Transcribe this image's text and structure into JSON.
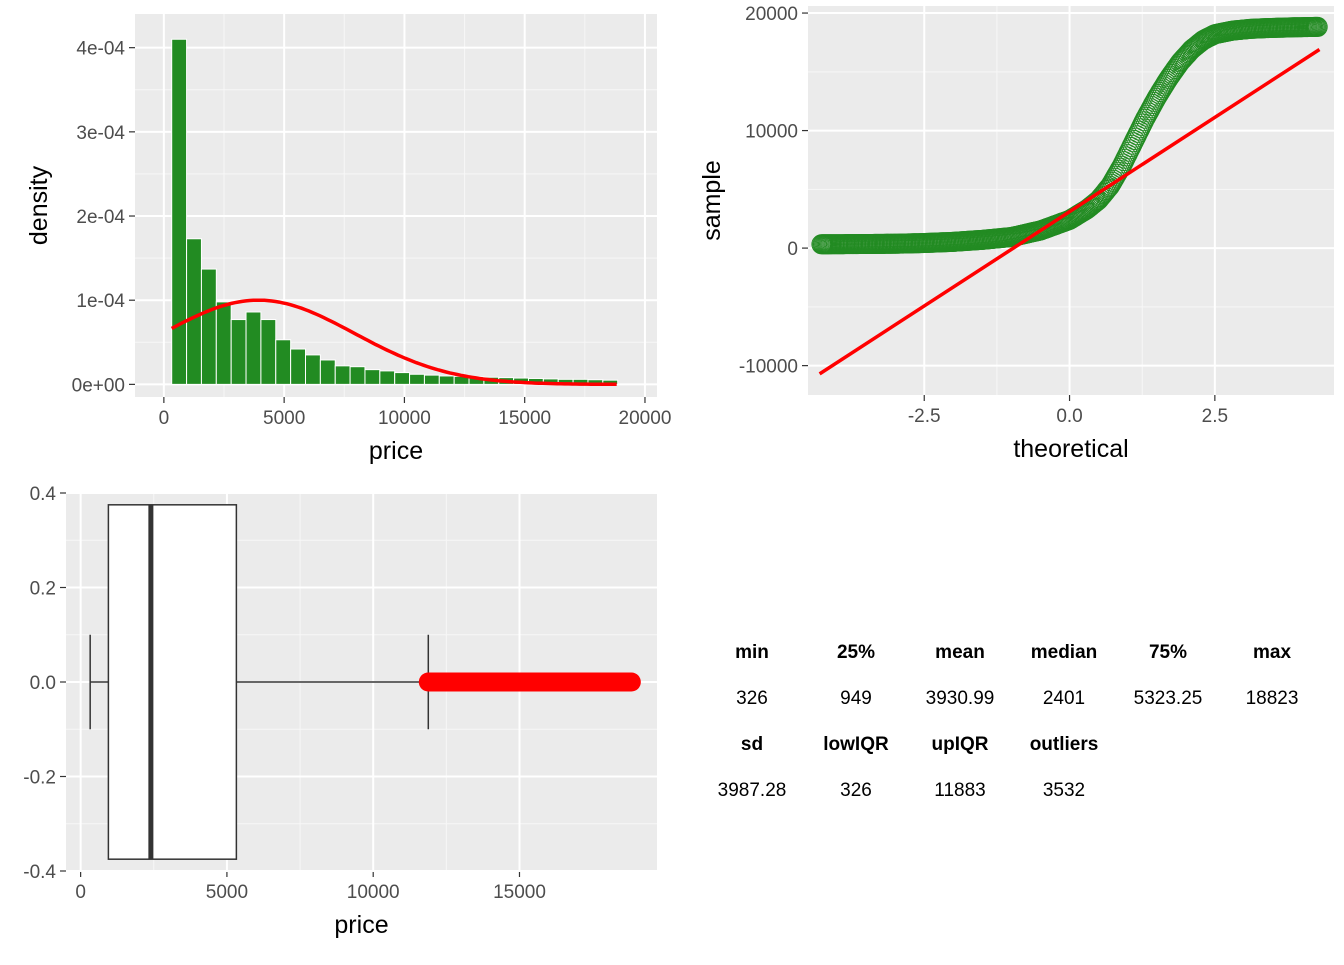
{
  "chart_data": [
    {
      "type": "bar",
      "subtype": "histogram-with-normal-density",
      "xlabel": "price",
      "ylabel": "density",
      "xlim": [
        -1200,
        20500
      ],
      "ylim": [
        -1.5e-05,
        0.00044
      ],
      "xticks": [
        0,
        5000,
        10000,
        15000,
        20000
      ],
      "xtick_labels": [
        "0",
        "5000",
        "10000",
        "15000",
        "20000"
      ],
      "yticks": [
        0,
        0.0001,
        0.0002,
        0.0003,
        0.0004
      ],
      "ytick_labels": [
        "0e+00",
        "1e-04",
        "2e-04",
        "3e-04",
        "4e-04"
      ],
      "bin_width": 618,
      "bin_start": 326,
      "values": [
        0.00041,
        0.000173,
        0.000137,
        9.8e-05,
        7.7e-05,
        8.6e-05,
        7.7e-05,
        5.3e-05,
        4.2e-05,
        3.5e-05,
        2.9e-05,
        2.2e-05,
        2.1e-05,
        1.75e-05,
        1.6e-05,
        1.4e-05,
        1.2e-05,
        1.1e-05,
        1e-05,
        9.5e-06,
        9e-06,
        8.5e-06,
        8e-06,
        7.5e-06,
        7e-06,
        6.5e-06,
        6e-06,
        6e-06,
        5.5e-06,
        5e-06
      ],
      "bar_color": "#228B22",
      "curve": {
        "distribution": "normal",
        "mean": 3930.99,
        "sd": 3987.28,
        "x_from": 326,
        "x_to": 18823,
        "color": "#FF0000"
      },
      "grid": true,
      "legend": "none"
    },
    {
      "type": "scatter",
      "subtype": "normal-qq-plot",
      "xlabel": "theoretical",
      "ylabel": "sample",
      "xlim": [
        -4.5,
        4.55
      ],
      "ylim": [
        -12500,
        20600
      ],
      "xticks": [
        -2.5,
        0,
        2.5
      ],
      "xtick_labels": [
        "-2.5",
        "0.0",
        "2.5"
      ],
      "yticks": [
        -10000,
        0,
        10000,
        20000
      ],
      "ytick_labels": [
        "-10000",
        "0",
        "10000",
        "20000"
      ],
      "points": [
        [
          -4.27,
          326
        ],
        [
          -4.12,
          327
        ],
        [
          -4.0,
          332
        ],
        [
          -3.9,
          335
        ],
        [
          -3.8,
          338
        ],
        [
          -3.7,
          342
        ],
        [
          -3.6,
          345
        ],
        [
          -3.5,
          348
        ],
        [
          -3.3,
          355
        ],
        [
          -3.0,
          370
        ],
        [
          -2.5,
          430
        ],
        [
          -2.0,
          530
        ],
        [
          -1.5,
          700
        ],
        [
          -1.0,
          940
        ],
        [
          -0.5,
          1500
        ],
        [
          0.0,
          2401
        ],
        [
          0.3,
          3300
        ],
        [
          0.5,
          4100
        ],
        [
          0.7,
          5300
        ],
        [
          0.9,
          7000
        ],
        [
          1.1,
          9000
        ],
        [
          1.3,
          11000
        ],
        [
          1.5,
          12800
        ],
        [
          1.7,
          14400
        ],
        [
          1.9,
          15800
        ],
        [
          2.1,
          16900
        ],
        [
          2.3,
          17700
        ],
        [
          2.5,
          18200
        ],
        [
          2.8,
          18500
        ],
        [
          3.1,
          18650
        ],
        [
          3.4,
          18720
        ],
        [
          3.7,
          18760
        ],
        [
          3.8,
          18780
        ],
        [
          3.9,
          18790
        ],
        [
          4.0,
          18800
        ],
        [
          4.27,
          18823
        ]
      ],
      "point_color": "#228B22",
      "reference_line": {
        "x": [
          -4.3,
          4.3
        ],
        "y": [
          -10700,
          16900
        ],
        "color": "#FF0000"
      },
      "grid": true,
      "legend": "none"
    },
    {
      "type": "boxplot",
      "orientation": "horizontal",
      "xlabel": "price",
      "ylabel": "",
      "xlim": [
        -500,
        19700
      ],
      "ylim": [
        -0.4,
        0.4
      ],
      "xticks": [
        0,
        5000,
        10000,
        15000
      ],
      "xtick_labels": [
        "0",
        "5000",
        "10000",
        "15000"
      ],
      "yticks": [
        -0.4,
        -0.2,
        0,
        0.2,
        0.4
      ],
      "ytick_labels": [
        "-0.4",
        "-0.2",
        "0.0",
        "0.2",
        "0.4"
      ],
      "box": {
        "whisker_low": 326,
        "q1": 949,
        "median": 2401,
        "q3": 5323.25,
        "whisker_high": 11883,
        "box_bottom": -0.375,
        "box_top": 0.375,
        "whisker_cap_halfheight": 0.1
      },
      "outliers": {
        "from": 11883,
        "to": 18823,
        "y": 0,
        "color": "#FF0000"
      },
      "grid": true,
      "legend": "none"
    },
    {
      "type": "table",
      "rows": [
        [
          "min",
          "25%",
          "mean",
          "median",
          "75%",
          "max"
        ],
        [
          "326",
          "949",
          "3930.99",
          "2401",
          "5323.25",
          "18823"
        ],
        [
          "sd",
          "lowIQR",
          "upIQR",
          "outliers"
        ],
        [
          "3987.28",
          "326",
          "11883",
          "3532"
        ]
      ],
      "header_rows": [
        0,
        2
      ]
    }
  ]
}
